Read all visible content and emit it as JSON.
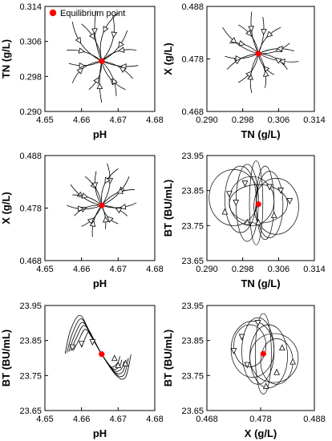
{
  "legend": {
    "label": "Equilibrium point",
    "color": "#ff0000"
  },
  "colors": {
    "trajectory": "#000000",
    "equilibrium": "#ff0000"
  },
  "chart_data": [
    {
      "id": "tn-vs-ph",
      "type": "line",
      "xlabel": "pH",
      "ylabel": "TN (g/L)",
      "xlim": [
        4.65,
        4.68
      ],
      "ylim": [
        0.29,
        0.314
      ],
      "xticks": [
        "4.65",
        "4.66",
        "4.67",
        "4.68"
      ],
      "yticks": [
        "0.290",
        "0.298",
        "0.306",
        "0.314"
      ],
      "equilibrium": [
        4.6655,
        0.3015
      ],
      "trajectories": [
        {
          "start": [
            4.6575,
            0.3105
          ],
          "curve": 0.25
        },
        {
          "start": [
            4.66,
            0.31
          ],
          "curve": -0.2
        },
        {
          "start": [
            4.664,
            0.313
          ],
          "curve": 0.15
        },
        {
          "start": [
            4.6685,
            0.312
          ],
          "curve": -0.25
        },
        {
          "start": [
            4.67,
            0.3125
          ],
          "curve": 0.3
        },
        {
          "start": [
            4.6725,
            0.3085
          ],
          "curve": -0.2
        },
        {
          "start": [
            4.675,
            0.304
          ],
          "curve": 0.25
        },
        {
          "start": [
            4.6755,
            0.3005
          ],
          "curve": -0.15
        },
        {
          "start": [
            4.674,
            0.2975
          ],
          "curve": 0.2
        },
        {
          "start": [
            4.672,
            0.295
          ],
          "curve": -0.25
        },
        {
          "start": [
            4.6695,
            0.2935
          ],
          "curve": 0.2
        },
        {
          "start": [
            4.6655,
            0.292
          ],
          "curve": -0.1
        },
        {
          "start": [
            4.662,
            0.295
          ],
          "curve": 0.25
        },
        {
          "start": [
            4.6575,
            0.2965
          ],
          "curve": -0.3
        },
        {
          "start": [
            4.6565,
            0.301
          ],
          "curve": 0.2
        },
        {
          "start": [
            4.656,
            0.304
          ],
          "curve": -0.2
        }
      ]
    },
    {
      "id": "x-vs-tn",
      "type": "line",
      "xlabel": "TN (g/L)",
      "ylabel": "X (g/L)",
      "xlim": [
        0.29,
        0.314
      ],
      "ylim": [
        0.468,
        0.488
      ],
      "xticks": [
        "0.290",
        "0.298",
        "0.306",
        "0.314"
      ],
      "yticks": [
        "0.468",
        "0.478",
        "0.488"
      ],
      "equilibrium": [
        0.3015,
        0.479
      ],
      "trajectories": [
        {
          "start": [
            0.2935,
            0.484
          ],
          "curve": 0.2
        },
        {
          "start": [
            0.297,
            0.4845
          ],
          "curve": -0.25
        },
        {
          "start": [
            0.3,
            0.487
          ],
          "curve": 0.15
        },
        {
          "start": [
            0.3025,
            0.486
          ],
          "curve": -0.15
        },
        {
          "start": [
            0.3065,
            0.484
          ],
          "curve": 0.25
        },
        {
          "start": [
            0.3085,
            0.481
          ],
          "curve": -0.2
        },
        {
          "start": [
            0.3095,
            0.4795
          ],
          "curve": 0.2
        },
        {
          "start": [
            0.3105,
            0.4775
          ],
          "curve": -0.15
        },
        {
          "start": [
            0.308,
            0.476
          ],
          "curve": 0.25
        },
        {
          "start": [
            0.305,
            0.475
          ],
          "curve": -0.25
        },
        {
          "start": [
            0.303,
            0.4725
          ],
          "curve": 0.2
        },
        {
          "start": [
            0.3,
            0.4715
          ],
          "curve": -0.2
        },
        {
          "start": [
            0.297,
            0.4735
          ],
          "curve": 0.25
        },
        {
          "start": [
            0.2945,
            0.476
          ],
          "curve": -0.2
        },
        {
          "start": [
            0.294,
            0.4785
          ],
          "curve": 0.2
        },
        {
          "start": [
            0.295,
            0.481
          ],
          "curve": -0.25
        }
      ]
    },
    {
      "id": "x-vs-ph",
      "type": "line",
      "xlabel": "pH",
      "ylabel": "X (g/L)",
      "xlim": [
        4.65,
        4.68
      ],
      "ylim": [
        0.468,
        0.488
      ],
      "xticks": [
        "4.65",
        "4.66",
        "4.67",
        "4.68"
      ],
      "yticks": [
        "0.468",
        "0.478",
        "0.488"
      ],
      "equilibrium": [
        4.6655,
        0.4785
      ],
      "trajectories": [
        {
          "start": [
            4.657,
            0.4825
          ],
          "curve": 0.2
        },
        {
          "start": [
            4.661,
            0.484
          ],
          "curve": -0.2
        },
        {
          "start": [
            4.664,
            0.485
          ],
          "curve": 0.2
        },
        {
          "start": [
            4.667,
            0.4865
          ],
          "curve": -0.25
        },
        {
          "start": [
            4.67,
            0.4855
          ],
          "curve": 0.3
        },
        {
          "start": [
            4.673,
            0.484
          ],
          "curve": -0.2
        },
        {
          "start": [
            4.6745,
            0.4815
          ],
          "curve": 0.25
        },
        {
          "start": [
            4.675,
            0.479
          ],
          "curve": -0.2
        },
        {
          "start": [
            4.6725,
            0.4765
          ],
          "curve": 0.2
        },
        {
          "start": [
            4.67,
            0.475
          ],
          "curve": -0.25
        },
        {
          "start": [
            4.6665,
            0.474
          ],
          "curve": 0.15
        },
        {
          "start": [
            4.663,
            0.4725
          ],
          "curve": -0.2
        },
        {
          "start": [
            4.66,
            0.4745
          ],
          "curve": 0.2
        },
        {
          "start": [
            4.658,
            0.4765
          ],
          "curve": -0.25
        },
        {
          "start": [
            4.656,
            0.4785
          ],
          "curve": 0.2
        },
        {
          "start": [
            4.6575,
            0.4805
          ],
          "curve": -0.2
        }
      ]
    },
    {
      "id": "bt-vs-tn",
      "type": "line",
      "xlabel": "TN (g/L)",
      "ylabel": "BT (BU/mL)",
      "xlim": [
        0.29,
        0.314
      ],
      "ylim": [
        23.65,
        23.95
      ],
      "xticks": [
        "0.290",
        "0.298",
        "0.306",
        "0.314"
      ],
      "yticks": [
        "23.65",
        "23.75",
        "23.85",
        "23.95"
      ],
      "equilibrium": [
        0.3015,
        23.811
      ],
      "loops": [
        {
          "cx": 0.2975,
          "cy": 23.825,
          "rx": 0.0035,
          "ry": 0.095
        },
        {
          "cx": 0.296,
          "cy": 23.83,
          "rx": 0.0055,
          "ry": 0.08
        },
        {
          "cx": 0.299,
          "cy": 23.815,
          "rx": 0.0025,
          "ry": 0.11
        },
        {
          "cx": 0.3,
          "cy": 23.82,
          "rx": 0.005,
          "ry": 0.07
        },
        {
          "cx": 0.304,
          "cy": 23.81,
          "rx": 0.003,
          "ry": 0.095
        },
        {
          "cx": 0.3055,
          "cy": 23.805,
          "rx": 0.005,
          "ry": 0.08
        },
        {
          "cx": 0.303,
          "cy": 23.815,
          "rx": 0.002,
          "ry": 0.105
        },
        {
          "cx": 0.3015,
          "cy": 23.812,
          "rx": 0.0065,
          "ry": 0.055
        },
        {
          "cx": 0.301,
          "cy": 23.815,
          "rx": 0.0015,
          "ry": 0.12
        }
      ],
      "arrows": [
        {
          "x": 0.295,
          "y": 23.84,
          "dir": "down"
        },
        {
          "x": 0.294,
          "y": 23.79,
          "dir": "up"
        },
        {
          "x": 0.2985,
          "y": 23.87,
          "dir": "down"
        },
        {
          "x": 0.299,
          "y": 23.76,
          "dir": "up"
        },
        {
          "x": 0.304,
          "y": 23.86,
          "dir": "down"
        },
        {
          "x": 0.305,
          "y": 23.78,
          "dir": "up"
        },
        {
          "x": 0.3085,
          "y": 23.82,
          "dir": "down"
        },
        {
          "x": 0.3015,
          "y": 23.76,
          "dir": "up"
        },
        {
          "x": 0.2965,
          "y": 23.815,
          "dir": "down"
        },
        {
          "x": 0.3065,
          "y": 23.85,
          "dir": "down"
        }
      ]
    },
    {
      "id": "bt-vs-ph",
      "type": "line",
      "xlabel": "pH",
      "ylabel": "BT (BU/mL)",
      "xlim": [
        4.65,
        4.68
      ],
      "ylim": [
        23.65,
        23.95
      ],
      "xticks": [
        "4.65",
        "4.66",
        "4.67",
        "4.68"
      ],
      "yticks": [
        "23.65",
        "23.75",
        "23.85",
        "23.95"
      ],
      "equilibrium": [
        4.6655,
        23.811
      ],
      "curves": [
        [
          [
            4.6555,
            23.812
          ],
          [
            4.657,
            23.88
          ],
          [
            4.6595,
            23.922
          ],
          [
            4.662,
            23.88
          ],
          [
            4.6655,
            23.811
          ],
          [
            4.6695,
            23.75
          ],
          [
            4.672,
            23.745
          ],
          [
            4.6735,
            23.81
          ]
        ],
        [
          [
            4.656,
            23.815
          ],
          [
            4.6575,
            23.87
          ],
          [
            4.6598,
            23.912
          ],
          [
            4.6622,
            23.875
          ],
          [
            4.6655,
            23.811
          ],
          [
            4.6693,
            23.755
          ],
          [
            4.6716,
            23.752
          ],
          [
            4.6728,
            23.8
          ]
        ],
        [
          [
            4.6565,
            23.818
          ],
          [
            4.658,
            23.862
          ],
          [
            4.6602,
            23.902
          ],
          [
            4.6625,
            23.868
          ],
          [
            4.6655,
            23.811
          ],
          [
            4.669,
            23.76
          ],
          [
            4.6712,
            23.76
          ],
          [
            4.6722,
            23.795
          ]
        ],
        [
          [
            4.657,
            23.82
          ],
          [
            4.6585,
            23.855
          ],
          [
            4.6606,
            23.893
          ],
          [
            4.6628,
            23.862
          ],
          [
            4.6655,
            23.811
          ],
          [
            4.6688,
            23.765
          ],
          [
            4.6708,
            23.768
          ],
          [
            4.6716,
            23.79
          ]
        ],
        [
          [
            4.6578,
            23.822
          ],
          [
            4.6592,
            23.85
          ],
          [
            4.661,
            23.882
          ],
          [
            4.663,
            23.855
          ],
          [
            4.6655,
            23.811
          ],
          [
            4.6685,
            23.77
          ],
          [
            4.6703,
            23.775
          ],
          [
            4.671,
            23.795
          ]
        ],
        [
          [
            4.66,
            23.83
          ],
          [
            4.6612,
            23.862
          ],
          [
            4.6622,
            23.875
          ],
          [
            4.6635,
            23.848
          ],
          [
            4.6655,
            23.811
          ],
          [
            4.668,
            23.775
          ],
          [
            4.6698,
            23.785
          ],
          [
            4.6705,
            23.805
          ]
        ]
      ],
      "arrows": [
        {
          "x": 4.66,
          "y": 23.84,
          "dir": "down"
        },
        {
          "x": 4.663,
          "y": 23.845,
          "dir": "down"
        },
        {
          "x": 4.67,
          "y": 23.78,
          "dir": "up"
        },
        {
          "x": 4.672,
          "y": 23.785,
          "dir": "up"
        },
        {
          "x": 4.6575,
          "y": 23.83,
          "dir": "down"
        },
        {
          "x": 4.669,
          "y": 23.8,
          "dir": "up"
        }
      ]
    },
    {
      "id": "bt-vs-x",
      "type": "line",
      "xlabel": "X (g/L)",
      "ylabel": "BT (BU/mL)",
      "xlim": [
        0.468,
        0.488
      ],
      "ylim": [
        23.65,
        23.95
      ],
      "xticks": [
        "0.468",
        "0.478",
        "0.488"
      ],
      "yticks": [
        "23.65",
        "23.75",
        "23.85",
        "23.95"
      ],
      "equilibrium": [
        0.4785,
        23.812
      ],
      "loops": [
        {
          "cx": 0.4775,
          "cy": 23.82,
          "rx": 0.003,
          "ry": 0.095
        },
        {
          "cx": 0.4765,
          "cy": 23.825,
          "rx": 0.004,
          "ry": 0.08
        },
        {
          "cx": 0.4795,
          "cy": 23.805,
          "rx": 0.0035,
          "ry": 0.09
        },
        {
          "cx": 0.4805,
          "cy": 23.8,
          "rx": 0.0045,
          "ry": 0.07
        },
        {
          "cx": 0.4785,
          "cy": 23.812,
          "rx": 0.0015,
          "ry": 0.115
        },
        {
          "cx": 0.476,
          "cy": 23.835,
          "rx": 0.003,
          "ry": 0.06
        },
        {
          "cx": 0.481,
          "cy": 23.79,
          "rx": 0.003,
          "ry": 0.065
        }
      ],
      "arrows": [
        {
          "x": 0.4745,
          "y": 23.86,
          "dir": "down"
        },
        {
          "x": 0.4755,
          "y": 23.78,
          "dir": "down"
        },
        {
          "x": 0.4775,
          "y": 23.9,
          "dir": "down"
        },
        {
          "x": 0.482,
          "y": 23.83,
          "dir": "up"
        },
        {
          "x": 0.481,
          "y": 23.76,
          "dir": "up"
        },
        {
          "x": 0.479,
          "y": 23.72,
          "dir": "up"
        },
        {
          "x": 0.484,
          "y": 23.79,
          "dir": "up"
        },
        {
          "x": 0.473,
          "y": 23.82,
          "dir": "down"
        }
      ]
    }
  ]
}
